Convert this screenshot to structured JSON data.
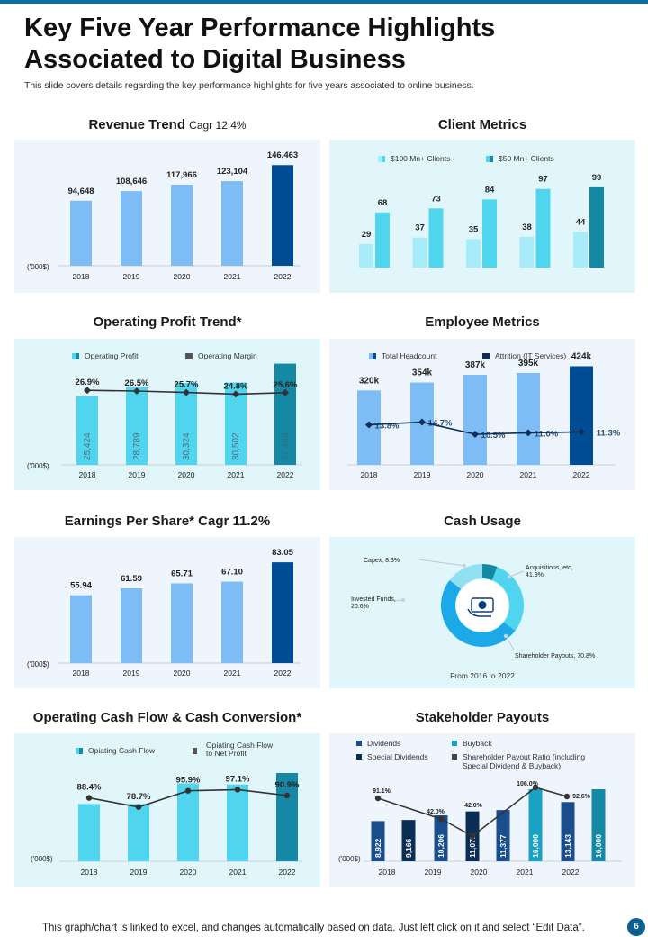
{
  "header": {
    "title": "Key Five Year Performance Highlights Associated to Digital Business",
    "subtitle": "This slide covers details regarding the key performance highlights for five years associated to online business."
  },
  "footer": {
    "note": "This graph/chart is linked to excel,  and changes automatically based on data. Just left click on it and select “Edit Data”.",
    "page_number": "6"
  },
  "colors": {
    "light_bar": "#7dbcf5",
    "dark_bar": "#004d96",
    "cyan": "#4fd6ee",
    "light_cyan": "#a7ecf8",
    "teal": "#1488a4",
    "navy": "#0a3d78",
    "panel_blue": "#eef5fd",
    "panel_cyan": "#e1f6fb"
  },
  "panels": {
    "revenue": {
      "title": "Revenue Trend",
      "title_suffix": "Cagr 12.4%"
    },
    "clients": {
      "title": "Client Metrics"
    },
    "op_profit": {
      "title": "Operating Profit Trend*"
    },
    "employee": {
      "title": "Employee Metrics"
    },
    "eps": {
      "title": "Earnings Per Share* Cagr 11.2%"
    },
    "cash_usage": {
      "title": "Cash Usage"
    },
    "ocf": {
      "title": "Operating Cash Flow & Cash Conversion*"
    },
    "stakeholder": {
      "title": "Stakeholder Payouts"
    }
  },
  "chart_data": [
    {
      "id": "revenue",
      "type": "bar",
      "title": "Revenue Trend Cagr 12.4%",
      "unit_label": "('000$)",
      "categories": [
        "2018",
        "2019",
        "2020",
        "2021",
        "2022"
      ],
      "values": [
        94648,
        108646,
        117966,
        123104,
        146463
      ],
      "labels": [
        "94,648",
        "108,646",
        "117,966",
        "123,104",
        "146,463"
      ],
      "ylim": [
        0,
        160000
      ]
    },
    {
      "id": "clients",
      "type": "bar",
      "title": "Client Metrics",
      "legend": [
        "$100 Mn+ Clients",
        "$50 Mn+ Clients"
      ],
      "categories": [
        "",
        "",
        "",
        "",
        ""
      ],
      "series": [
        {
          "name": "$100 Mn+ Clients",
          "values": [
            29,
            37,
            35,
            38,
            44
          ]
        },
        {
          "name": "$50 Mn+ Clients",
          "values": [
            68,
            73,
            84,
            97,
            99
          ]
        }
      ],
      "ylim": [
        0,
        110
      ]
    },
    {
      "id": "op_profit",
      "type": "bar",
      "title": "Operating Profit Trend*",
      "unit_label": "('000$)",
      "legend": [
        "Operating  Profit",
        "Operating  Margin"
      ],
      "categories": [
        "2018",
        "2019",
        "2020",
        "2021",
        "2022"
      ],
      "series": [
        {
          "name": "Operating  Profit",
          "values": [
            25424,
            28789,
            30324,
            30502,
            37465
          ],
          "labels": [
            "25,424",
            "28,789",
            "30,324",
            "30,502",
            "37,465"
          ]
        },
        {
          "name": "Operating  Margin",
          "values": [
            26.9,
            26.5,
            25.7,
            24.8,
            25.6
          ],
          "labels": [
            "26.9%",
            "26.5%",
            "25.7%",
            "24.8%",
            "25.6%"
          ]
        }
      ],
      "ylim": [
        0,
        45000
      ]
    },
    {
      "id": "employee",
      "type": "bar",
      "title": "Employee Metrics",
      "legend": [
        "Total Headcount",
        "Attrition (IT Services)"
      ],
      "categories": [
        "2018",
        "2019",
        "2020",
        "2021",
        "2022"
      ],
      "series": [
        {
          "name": "Total Headcount",
          "values": [
            320,
            354,
            387,
            395,
            424
          ],
          "labels": [
            "320k",
            "354k",
            "387k",
            "395k",
            "424k"
          ]
        },
        {
          "name": "Attrition (IT Services)",
          "values": [
            13.8,
            14.7,
            10.5,
            11.0,
            11.3
          ],
          "labels": [
            "13.8%",
            "14.7%",
            "10.5%",
            "11.0%",
            "11.3%"
          ]
        }
      ],
      "ylim": [
        0,
        480
      ]
    },
    {
      "id": "eps",
      "type": "bar",
      "title": "Earnings Per Share* Cagr 11.2%",
      "unit_label": "('000$)",
      "categories": [
        "2018",
        "2019",
        "2020",
        "2021",
        "2022"
      ],
      "values": [
        55.94,
        61.59,
        65.71,
        67.1,
        83.05
      ],
      "labels": [
        "55.94",
        "61.59",
        "65.71",
        "67.10",
        "83.05"
      ],
      "ylim": [
        0,
        95
      ]
    },
    {
      "id": "cash_usage",
      "type": "pie",
      "title": "Cash Usage",
      "caption": "From 2016  to 2022",
      "slices": [
        {
          "label": "Capex, 8.3%",
          "value": 8.3
        },
        {
          "label": "Acquisitions,  etc, 41.9%",
          "value": 41.9
        },
        {
          "label": "Shareholder  Payouts,  70.8%",
          "value": 70.8
        },
        {
          "label": "Invested Funds, 20.6%",
          "value": 20.6
        }
      ]
    },
    {
      "id": "ocf",
      "type": "bar",
      "title": "Operating Cash Flow & Cash Conversion*",
      "unit_label": "('000$)",
      "legend": [
        "Opiating Cash Flow",
        "Opiating Cash Flow to Net Profit"
      ],
      "categories": [
        "2018",
        "2019",
        "2020",
        "2021",
        "2022"
      ],
      "series": [
        {
          "name": "Opiating Cash Flow",
          "values": [
            50,
            50,
            68,
            67,
            77
          ]
        },
        {
          "name": "Opiating Cash Flow to Net Profit",
          "values": [
            88.4,
            78.7,
            95.9,
            97.1,
            90.9
          ],
          "labels": [
            "88.4%",
            "78.7%",
            "95.9%",
            "97.1%",
            "90.9%"
          ]
        }
      ],
      "ylim": [
        0,
        110
      ]
    },
    {
      "id": "stakeholder",
      "type": "bar",
      "title": "Stakeholder Payouts",
      "unit_label": "('000$)",
      "legend": [
        "Dividends",
        "Buyback",
        "Special Dividends",
        "Shareholder  Payout Ratio (including Special Dividend & Buyback)"
      ],
      "categories": [
        "2018",
        "2019",
        "2020",
        "2021",
        "2022"
      ],
      "bars": [
        {
          "year": "2018",
          "kind": "Dividends",
          "value": 8922,
          "label": "8,922"
        },
        {
          "year": "2018",
          "kind": "Special Dividends",
          "value": 9166,
          "label": "9,166"
        },
        {
          "year": "2019",
          "kind": "Dividends",
          "value": 10206,
          "label": "10,206"
        },
        {
          "year": "2019",
          "kind": "Special Dividends",
          "value": 11071,
          "label": "11,071"
        },
        {
          "year": "2020",
          "kind": "Dividends",
          "value": 11377,
          "label": "11,377"
        },
        {
          "year": "2020",
          "kind": "Buyback",
          "value": 16000,
          "label": "16,000"
        },
        {
          "year": "2021",
          "kind": "Dividends",
          "value": 13143,
          "label": "13,143"
        },
        {
          "year": "2021",
          "kind": "Buyback",
          "value": 16000,
          "label": "16,000"
        }
      ],
      "ratio": {
        "values": [
          91.1,
          42.0,
          42.0,
          106.0,
          92.6
        ],
        "labels": [
          "91.1%",
          "42.0%",
          "42.0%",
          "106.0%",
          "92.6%"
        ]
      },
      "ylim": [
        0,
        19000
      ]
    }
  ]
}
